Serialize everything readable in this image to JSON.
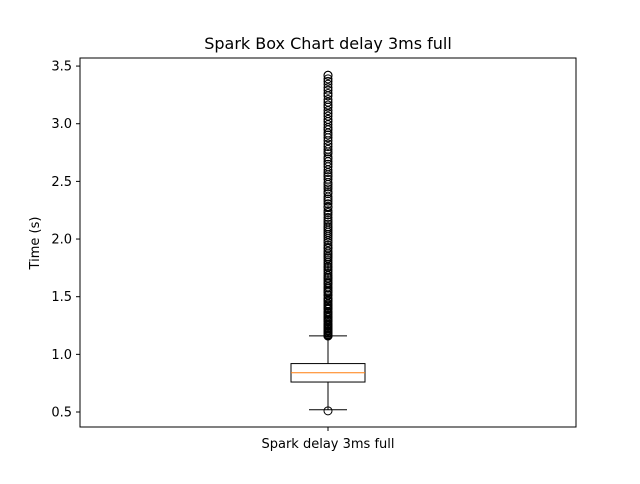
{
  "chart_data": {
    "type": "box",
    "title": "Spark Box Chart delay 3ms full",
    "xlabel": "",
    "ylabel": "Time (s)",
    "categories": [
      "Spark delay 3ms full"
    ],
    "ylim": [
      0.37,
      3.57
    ],
    "yticks": [
      0.5,
      1.0,
      1.5,
      2.0,
      2.5,
      3.0,
      3.5
    ],
    "ytick_labels": [
      "0.5",
      "1.0",
      "1.5",
      "2.0",
      "2.5",
      "3.0",
      "3.5"
    ],
    "grid": false,
    "legend": "none",
    "boxes": [
      {
        "name": "Spark delay 3ms full",
        "whisker_low": 0.52,
        "q1": 0.76,
        "median": 0.84,
        "q3": 0.92,
        "whisker_high": 1.16,
        "outliers_low": [
          0.51
        ],
        "outliers_high_range": [
          1.16,
          3.42
        ]
      }
    ],
    "colors": {
      "box": "#000000",
      "median": "#ff7f0e",
      "flier": "#000000"
    }
  }
}
